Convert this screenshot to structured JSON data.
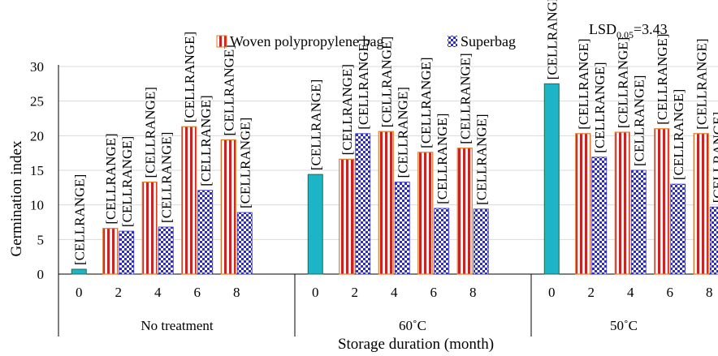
{
  "chart_data": {
    "type": "bar",
    "ylabel": "Germination index",
    "xlabel": "Storage duration (month)",
    "ylim": [
      0,
      30
    ],
    "yticks": [
      0,
      5,
      10,
      15,
      20,
      25,
      30
    ],
    "grid": true,
    "legend_position": "top",
    "annotation_lsd": "LSD",
    "annotation_lsd_sub": "0.05",
    "annotation_lsd_value": "=3.43",
    "data_label_text": "[CELLRANGE]",
    "groups": [
      {
        "name": "No treatment",
        "control": {
          "x": "0",
          "value": 0.7
        },
        "months": [
          "2",
          "4",
          "6",
          "8"
        ],
        "woven": [
          6.6,
          13.3,
          21.3,
          19.4
        ],
        "superbag": [
          6.2,
          6.8,
          12.1,
          8.9
        ]
      },
      {
        "name": "60˚C",
        "control": {
          "x": "0",
          "value": 14.4
        },
        "months": [
          "2",
          "4",
          "6",
          "8"
        ],
        "woven": [
          16.6,
          20.6,
          17.6,
          18.2
        ],
        "superbag": [
          20.3,
          13.3,
          9.5,
          9.4
        ]
      },
      {
        "name": "50˚C",
        "control": {
          "x": "0",
          "value": 27.5
        },
        "months": [
          "2",
          "4",
          "6",
          "8"
        ],
        "woven": [
          20.3,
          20.5,
          21.0,
          20.3
        ],
        "superbag": [
          16.9,
          15.0,
          13.0,
          9.7
        ]
      }
    ],
    "series": [
      {
        "name": "Woven polypropylene bag",
        "color": "#cc2222"
      },
      {
        "name": "Superbag",
        "color": "#2a2ad6"
      }
    ],
    "control_color": "#1eb4c8"
  }
}
